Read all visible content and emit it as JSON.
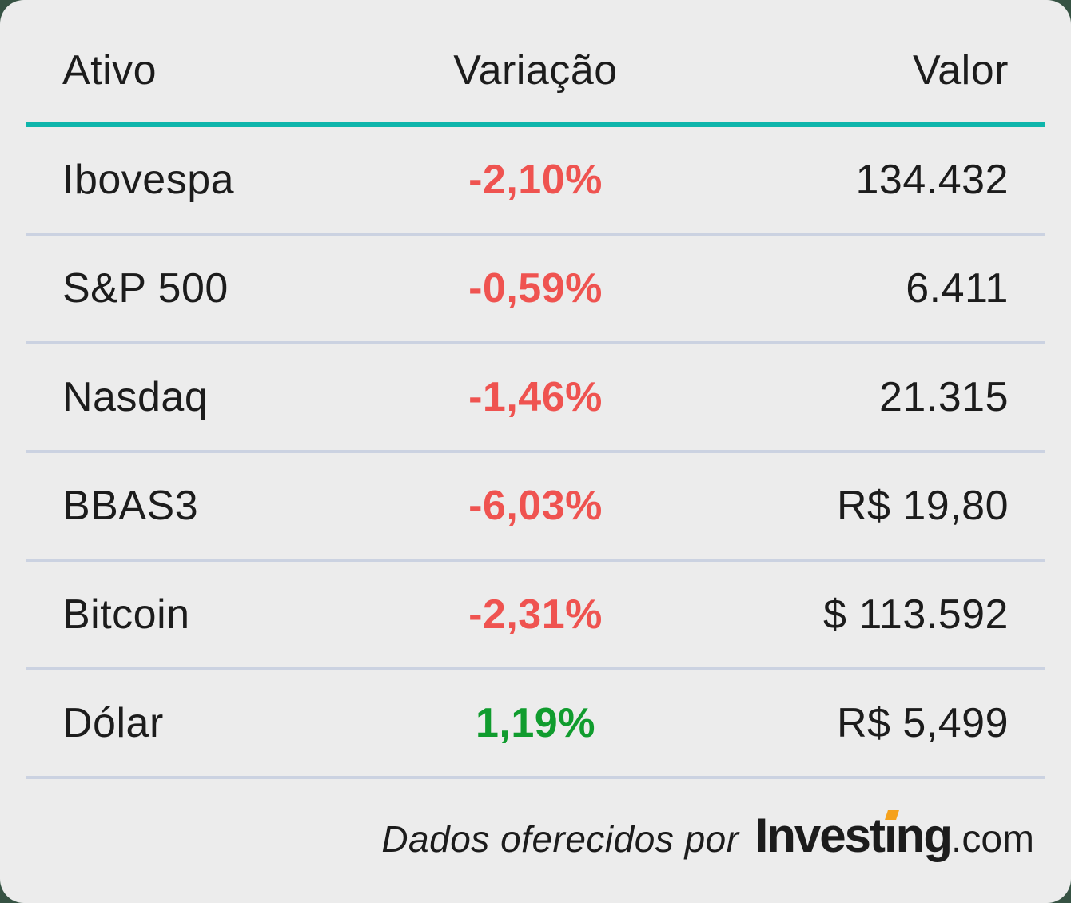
{
  "colors": {
    "page_bg": "#365243",
    "card_bg": "#ECECEC",
    "text": "#1C1C1C",
    "accent_teal": "#0FB5AB",
    "separator": "#CBD2E1",
    "negative": "#EF5350",
    "positive": "#109C2E",
    "logo_orange": "#F5A11C"
  },
  "table": {
    "headers": {
      "asset": "Ativo",
      "variation": "Variação",
      "value": "Valor"
    },
    "rows": [
      {
        "asset": "Ibovespa",
        "change": "-2,10%",
        "value": "134.432",
        "direction": "down"
      },
      {
        "asset": "S&P 500",
        "change": "-0,59%",
        "value": "6.411",
        "direction": "down"
      },
      {
        "asset": "Nasdaq",
        "change": "-1,46%",
        "value": "21.315",
        "direction": "down"
      },
      {
        "asset": "BBAS3",
        "change": "-6,03%",
        "value": "R$ 19,80",
        "direction": "down"
      },
      {
        "asset": "Bitcoin",
        "change": "-2,31%",
        "value": "$ 113.592",
        "direction": "down"
      },
      {
        "asset": "Dólar",
        "change": "1,19%",
        "value": "R$ 5,499",
        "direction": "up"
      }
    ]
  },
  "footer": {
    "credit_text": "Dados oferecidos por",
    "logo": {
      "part1": "Invest",
      "dotless_i": "ı",
      "part2": "ng",
      "tld": ".com"
    }
  }
}
